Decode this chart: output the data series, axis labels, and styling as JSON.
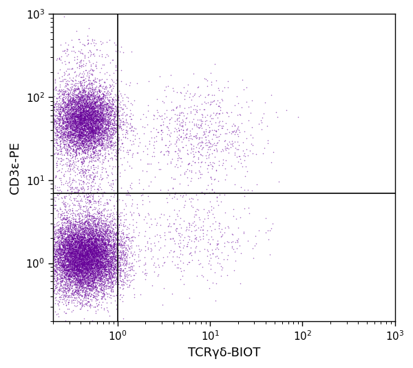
{
  "dot_color": "#660099",
  "dot_alpha": 0.6,
  "dot_size": 1.2,
  "xlabel": "TCRγδ-BIOT",
  "ylabel": "CD3ε-PE",
  "xlim": [
    0.2,
    1000
  ],
  "ylim": [
    0.2,
    1000
  ],
  "xline": 1.0,
  "yline": 7.0,
  "n_points_main": 18000,
  "background_color": "#ffffff",
  "xlabel_fontsize": 13,
  "ylabel_fontsize": 13,
  "tick_fontsize": 11
}
